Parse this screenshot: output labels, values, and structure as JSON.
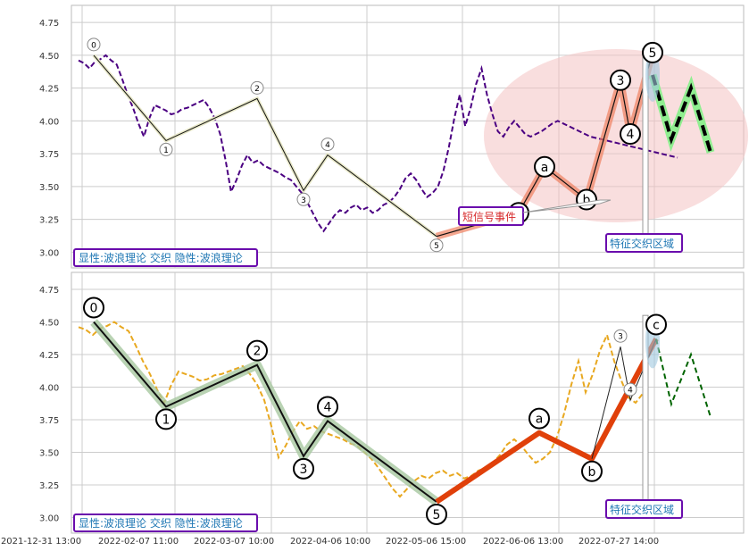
{
  "chart_data": [
    {
      "type": "line",
      "panel": "top",
      "ylim": [
        2.88,
        4.88
      ],
      "yticks": [
        "3.00",
        "3.25",
        "3.50",
        "3.75",
        "4.00",
        "4.25",
        "4.50",
        "4.75"
      ],
      "grid": true,
      "legend_text": "显性:波浪理论 交织 隐性:波浪理论",
      "zone_label": "特征交织区域",
      "signal_label": "短信号事件",
      "series": [
        {
          "style": "price-line",
          "color": "#4b0082",
          "x": [
            0,
            2,
            4,
            6,
            8,
            10,
            12,
            14,
            16,
            18,
            20,
            22,
            24,
            26,
            28,
            30,
            32,
            34,
            36,
            38,
            40,
            42,
            44,
            46,
            48,
            50,
            52,
            54,
            56,
            58,
            60,
            62,
            64,
            66,
            68,
            70,
            72,
            74,
            76,
            78,
            80,
            82,
            84,
            86,
            88,
            90,
            92,
            94,
            96,
            98,
            100,
            102,
            104,
            106,
            108,
            110,
            112,
            114,
            116,
            118,
            120,
            122,
            124,
            126,
            128,
            130,
            132,
            134,
            136,
            138,
            140,
            142,
            144,
            146,
            148,
            150,
            152,
            154,
            156,
            158,
            160,
            162,
            164,
            166,
            168,
            170,
            172,
            174,
            176,
            178,
            180,
            182,
            184,
            186,
            188,
            190,
            192,
            194,
            196,
            198,
            200,
            202,
            204,
            206,
            208,
            210,
            212,
            214,
            216,
            218,
            220
          ],
          "y": [
            4.46,
            4.44,
            4.4,
            4.45,
            4.47,
            4.5,
            4.46,
            4.43,
            4.32,
            4.2,
            4.1,
            3.98,
            3.88,
            4.02,
            4.12,
            4.1,
            4.08,
            4.05,
            4.06,
            4.09,
            4.1,
            4.12,
            4.14,
            4.16,
            4.1,
            4.02,
            3.9,
            3.7,
            3.46,
            3.55,
            3.66,
            3.74,
            3.68,
            3.7,
            3.66,
            3.64,
            3.62,
            3.6,
            3.57,
            3.55,
            3.5,
            3.45,
            3.38,
            3.3,
            3.22,
            3.16,
            3.22,
            3.28,
            3.32,
            3.3,
            3.34,
            3.36,
            3.32,
            3.34,
            3.3,
            3.32,
            3.36,
            3.38,
            3.42,
            3.48,
            3.56,
            3.6,
            3.55,
            3.48,
            3.42,
            3.45,
            3.5,
            3.62,
            3.8,
            4.02,
            4.2,
            3.96,
            4.1,
            4.28,
            4.4,
            4.2,
            4.05,
            3.92,
            3.88,
            3.95,
            4.0,
            3.95,
            3.9,
            3.88,
            3.9,
            3.92,
            3.95,
            3.98,
            4.0,
            3.98,
            3.96,
            3.94,
            3.92,
            3.9,
            3.88,
            3.87,
            3.86,
            3.85,
            3.84,
            3.83,
            3.82,
            3.81,
            3.8,
            3.79,
            3.78,
            3.77,
            3.76,
            3.75,
            3.74,
            3.73,
            3.72
          ]
        }
      ],
      "waves": [
        {
          "label": "0",
          "x": 12,
          "y": 4.5
        },
        {
          "label": "1",
          "x": 38,
          "y": 3.85
        },
        {
          "label": "2",
          "x": 80,
          "y": 4.17
        },
        {
          "label": "3",
          "x": 105,
          "y": 3.47
        },
        {
          "label": "4",
          "x": 114,
          "y": 3.74
        },
        {
          "label": "5",
          "x": 165,
          "y": 3.12
        },
        {
          "label": "0",
          "x": 200,
          "y": 3.3
        },
        {
          "label": "a",
          "x": 215,
          "y": 3.65
        },
        {
          "label": "b",
          "x": 235,
          "y": 3.4
        },
        {
          "label": "3",
          "x": 247,
          "y": 4.31
        },
        {
          "label": "4",
          "x": 252,
          "y": 3.9
        },
        {
          "label": "5",
          "x": 260,
          "y": 4.52
        }
      ]
    },
    {
      "type": "line",
      "panel": "bottom",
      "ylim": [
        2.88,
        4.88
      ],
      "yticks": [
        "3.00",
        "3.25",
        "3.50",
        "3.75",
        "4.00",
        "4.25",
        "4.50",
        "4.75"
      ],
      "xticks": [
        "2021-12-31 13:00",
        "2022-02-07 11:00",
        "2022-03-07 10:00",
        "2022-04-06 10:00",
        "2022-05-06 15:00",
        "2022-06-06 13:00",
        "2022-07-27 14:00"
      ],
      "grid": true,
      "legend_text": "显性:波浪理论 交织 隐性:波浪理论",
      "zone_label": "特征交织区域",
      "series": [
        {
          "style": "price-line",
          "color": "#e8a820",
          "y": [
            4.46,
            4.44,
            4.4,
            4.45,
            4.47,
            4.5,
            4.46,
            4.43,
            4.32,
            4.2,
            4.1,
            3.98,
            3.88,
            4.02,
            4.12,
            4.1,
            4.08,
            4.05,
            4.06,
            4.09,
            4.1,
            4.12,
            4.14,
            4.16,
            4.1,
            4.02,
            3.9,
            3.7,
            3.46,
            3.55,
            3.66,
            3.74,
            3.68,
            3.7,
            3.66,
            3.64,
            3.62,
            3.6,
            3.57,
            3.55,
            3.5,
            3.45,
            3.38,
            3.3,
            3.22,
            3.16,
            3.22,
            3.28,
            3.32,
            3.3,
            3.34,
            3.36,
            3.32,
            3.34,
            3.3,
            3.32,
            3.36,
            3.38,
            3.42,
            3.48,
            3.56,
            3.6,
            3.55,
            3.48,
            3.42,
            3.45,
            3.5,
            3.62,
            3.8,
            4.02,
            4.2,
            3.96,
            4.1,
            4.28,
            4.4,
            4.2,
            4.05,
            3.92,
            3.88,
            3.95,
            4.0
          ]
        }
      ],
      "waves": [
        {
          "label": "0",
          "x": 12,
          "y": 4.5
        },
        {
          "label": "1",
          "x": 38,
          "y": 3.85
        },
        {
          "label": "2",
          "x": 80,
          "y": 4.17
        },
        {
          "label": "3",
          "x": 105,
          "y": 3.47
        },
        {
          "label": "4",
          "x": 114,
          "y": 3.74
        },
        {
          "label": "5",
          "x": 165,
          "y": 3.12
        },
        {
          "label": "a",
          "x": 213,
          "y": 3.65
        },
        {
          "label": "b",
          "x": 235,
          "y": 3.45
        },
        {
          "label": "3",
          "x": 247,
          "y": 4.31
        },
        {
          "label": "4",
          "x": 252,
          "y": 3.9
        },
        {
          "label": "c",
          "x": 260,
          "y": 4.37
        }
      ]
    }
  ],
  "colors": {
    "grid": "#cccccc",
    "axis_text": "#333333",
    "legend_text": "#1f77b4",
    "legend_border": "#6a0dad",
    "zone_text": "#1f77b4",
    "signal_text": "#d62728",
    "ellipse": "#f4c2c2",
    "highlight": "#f08060",
    "strong": "#e0400a",
    "forecast": "#000000",
    "forecast_top_glow": "#90ee90"
  }
}
